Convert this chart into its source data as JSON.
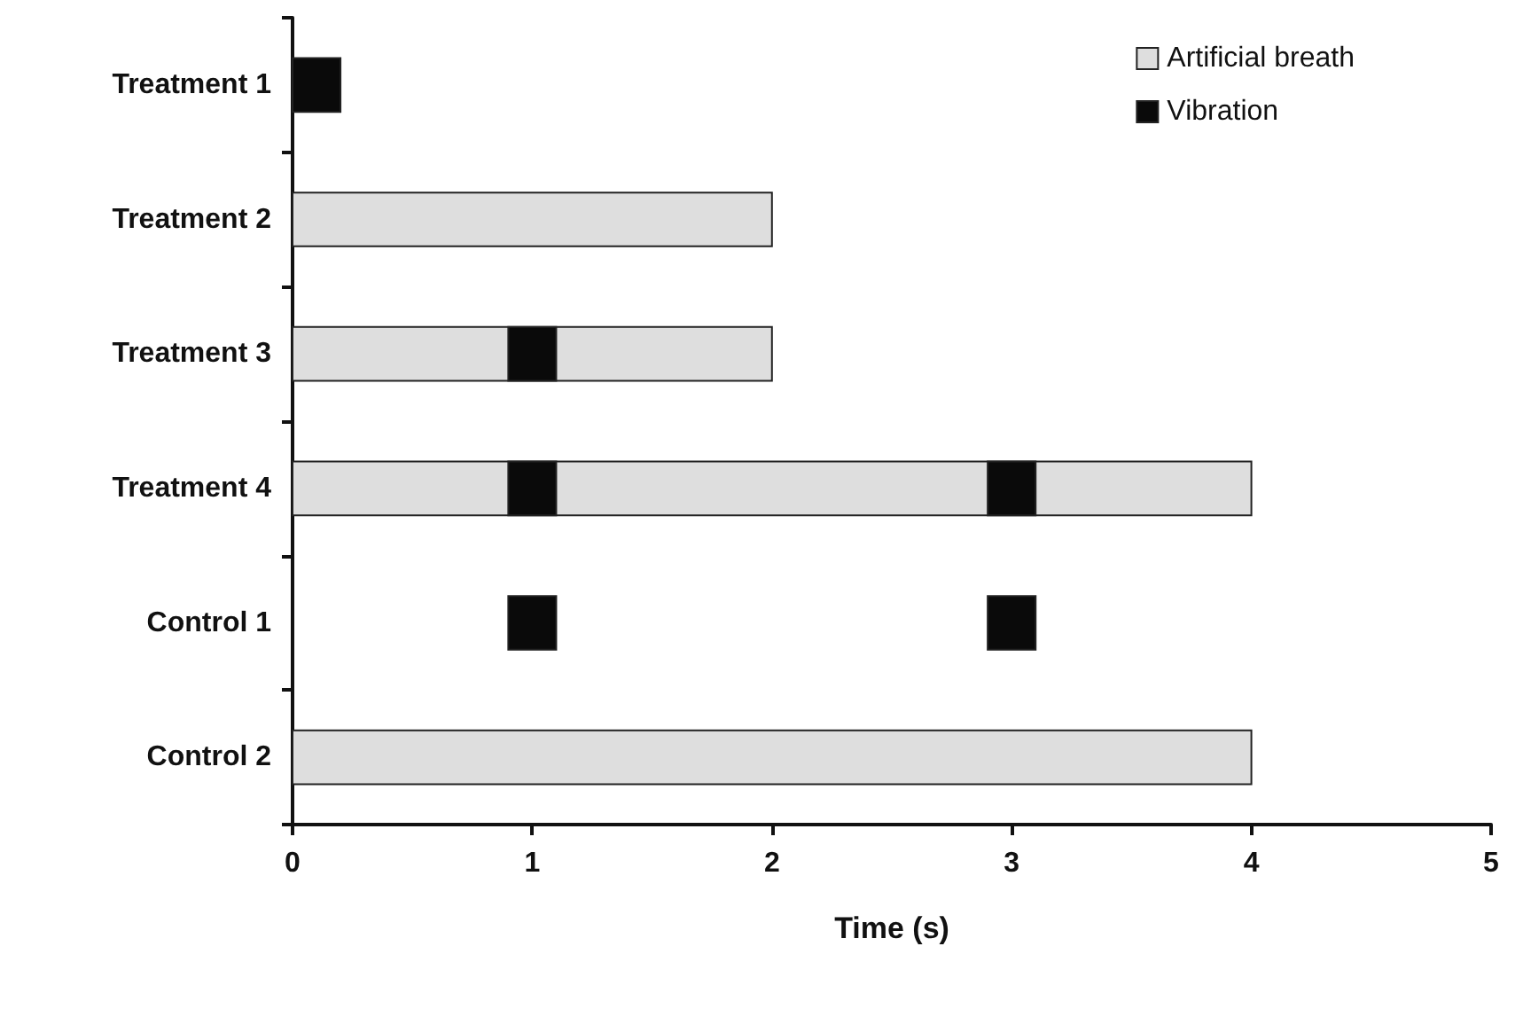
{
  "chart_data": {
    "type": "bar",
    "orientation": "horizontal",
    "xlabel": "Time (s)",
    "categories": [
      "Treatment 1",
      "Treatment 2",
      "Treatment 3",
      "Treatment 4",
      "Control 1",
      "Control 2"
    ],
    "series": [
      {
        "name": "Artificial breath",
        "color": "#dedede",
        "values": [
          null,
          2,
          2,
          4,
          null,
          4
        ],
        "base": [
          null,
          0,
          0,
          0,
          null,
          0
        ]
      },
      {
        "name": "Vibration",
        "color": "#0a0a0a",
        "values": [
          0.2,
          null,
          0.2,
          0.2,
          0.2,
          null
        ],
        "base": [
          0,
          null,
          0.9,
          0.9,
          0.9,
          null
        ]
      },
      {
        "color": "#0a0a0a",
        "values": [
          null,
          null,
          null,
          0.2,
          0.2,
          null
        ],
        "base": [
          null,
          null,
          null,
          2.9,
          2.9,
          null
        ]
      }
    ],
    "xlim": [
      0,
      5
    ],
    "xticks": [
      0,
      1,
      2,
      3,
      4,
      5
    ],
    "grid": false,
    "legend": "top right"
  }
}
